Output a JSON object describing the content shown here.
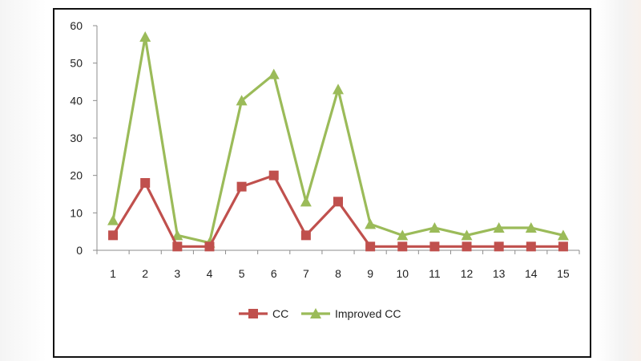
{
  "chart_data": {
    "type": "line",
    "categories": [
      "1",
      "2",
      "3",
      "4",
      "5",
      "6",
      "7",
      "8",
      "9",
      "10",
      "11",
      "12",
      "13",
      "14",
      "15"
    ],
    "ylim": [
      0,
      60
    ],
    "yticks": [
      0,
      10,
      20,
      30,
      40,
      50,
      60
    ],
    "grid": false,
    "legend_position": "bottom",
    "series": [
      {
        "name": "CC",
        "color": "#c0504d",
        "marker": "square",
        "values": [
          4,
          18,
          1,
          1,
          17,
          20,
          4,
          13,
          1,
          1,
          1,
          1,
          1,
          1,
          1
        ]
      },
      {
        "name": "Improved CC",
        "color": "#9bbb59",
        "marker": "triangle",
        "values": [
          8,
          57,
          4,
          2,
          40,
          47,
          13,
          43,
          7,
          4,
          6,
          4,
          6,
          6,
          4
        ]
      }
    ]
  }
}
